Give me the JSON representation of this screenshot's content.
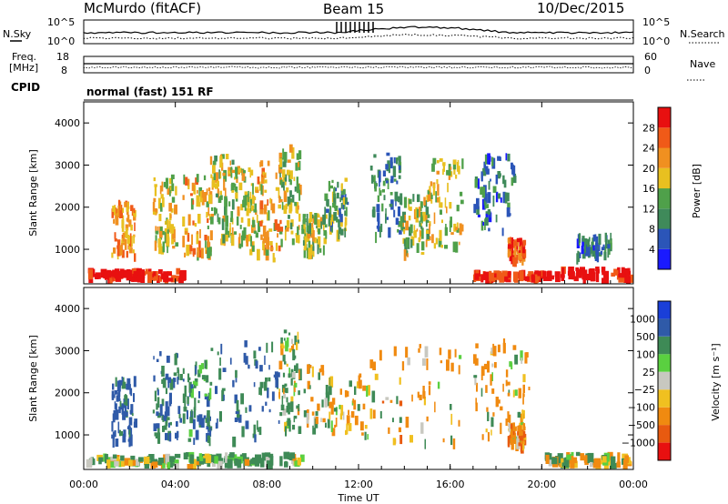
{
  "header": {
    "station": "McMurdo (fitACF)",
    "beam": "Beam 15",
    "date": "10/Dec/2015"
  },
  "strip": {
    "nsky_label": "N.Sky",
    "nsearch_label": "N.Search",
    "freq_label_1": "Freq.",
    "freq_label_2": "[MHz]",
    "nave_label": "Nave",
    "cpid_label": "CPID",
    "mode_text": "normal (fast) 151 RF",
    "noise_ticks_left": [
      "10^5",
      "10^0"
    ],
    "noise_ticks_right": [
      "10^5",
      "10^0"
    ],
    "freq_ticks": [
      "18",
      "8"
    ],
    "nave_ticks": [
      "60",
      "0"
    ]
  },
  "axes": {
    "ylabel": "Slant Range [km]",
    "xlabel": "Time UT",
    "y_ticks": [
      "1000",
      "2000",
      "3000",
      "4000"
    ],
    "x_ticks": [
      "00:00",
      "04:00",
      "08:00",
      "12:00",
      "16:00",
      "20:00",
      "00:00"
    ]
  },
  "colorbars": {
    "power": {
      "label": "Power [dB]",
      "ticks": [
        "4",
        "8",
        "12",
        "16",
        "20",
        "24",
        "28"
      ],
      "colors": [
        "#1a1aff",
        "#2b55b8",
        "#3f8a5a",
        "#4fa04a",
        "#e8c020",
        "#f09020",
        "#f05a18",
        "#e81010"
      ]
    },
    "velocity": {
      "label": "Velocity [m s⁻¹]",
      "ticks": [
        "1000",
        "500",
        "100",
        "25",
        "−25",
        "−100",
        "−500",
        "−1000"
      ],
      "colors": [
        "#1a3fd8",
        "#2f5aa8",
        "#3e8a56",
        "#5ad040",
        "#c8c8c0",
        "#f0c020",
        "#f08a10",
        "#e85a10",
        "#e81010"
      ]
    }
  },
  "chart_data": [
    {
      "type": "heatmap",
      "title": "Power",
      "xlabel": "Time UT",
      "ylabel": "Slant Range [km]",
      "xlim": [
        0,
        24
      ],
      "ylim": [
        180,
        4500
      ],
      "colorbar": {
        "label": "Power [dB]",
        "range": [
          0,
          32
        ]
      },
      "regions": [
        {
          "t0": 0.0,
          "t1": 4.3,
          "r0": 300,
          "r1": 560,
          "value": 30
        },
        {
          "t0": 17.0,
          "t1": 20.0,
          "r0": 300,
          "r1": 520,
          "value": 28
        },
        {
          "t0": 20.0,
          "t1": 24.0,
          "r0": 300,
          "r1": 600,
          "value": 30
        },
        {
          "t0": 1.2,
          "t1": 2.2,
          "r0": 900,
          "r1": 2200,
          "value": 22
        },
        {
          "t0": 3.0,
          "t1": 4.0,
          "r0": 1000,
          "r1": 2800,
          "value": 18
        },
        {
          "t0": 4.3,
          "t1": 5.5,
          "r0": 900,
          "r1": 2800,
          "value": 20
        },
        {
          "t0": 5.5,
          "t1": 6.5,
          "r0": 1200,
          "r1": 3300,
          "value": 16
        },
        {
          "t0": 6.5,
          "t1": 7.5,
          "r0": 1000,
          "r1": 3000,
          "value": 18
        },
        {
          "t0": 7.5,
          "t1": 8.6,
          "r0": 800,
          "r1": 3200,
          "value": 20
        },
        {
          "t0": 8.5,
          "t1": 9.4,
          "r0": 1200,
          "r1": 3500,
          "value": 16
        },
        {
          "t0": 9.5,
          "t1": 10.5,
          "r0": 1000,
          "r1": 1900,
          "value": 16
        },
        {
          "t0": 10.5,
          "t1": 11.5,
          "r0": 1400,
          "r1": 2700,
          "value": 12
        },
        {
          "t0": 12.5,
          "t1": 13.8,
          "r0": 1400,
          "r1": 3300,
          "value": 10
        },
        {
          "t0": 13.8,
          "t1": 15.0,
          "r0": 900,
          "r1": 2400,
          "value": 16
        },
        {
          "t0": 15.0,
          "t1": 16.5,
          "r0": 1100,
          "r1": 3200,
          "value": 18
        },
        {
          "t0": 17.0,
          "t1": 18.8,
          "r0": 1500,
          "r1": 3300,
          "value": 8
        },
        {
          "t0": 18.5,
          "t1": 19.2,
          "r0": 800,
          "r1": 1300,
          "value": 26
        },
        {
          "t0": 21.5,
          "t1": 23.0,
          "r0": 900,
          "r1": 1400,
          "value": 8
        }
      ]
    },
    {
      "type": "heatmap",
      "title": "Velocity",
      "xlabel": "Time UT",
      "ylabel": "Slant Range [km]",
      "xlim": [
        0,
        24
      ],
      "ylim": [
        180,
        4500
      ],
      "colorbar": {
        "label": "Velocity [m s⁻¹]",
        "range": [
          -1000,
          1000
        ]
      },
      "regions": [
        {
          "t0": 0.0,
          "t1": 4.3,
          "r0": 300,
          "r1": 560,
          "value": 50
        },
        {
          "t0": 4.3,
          "t1": 9.5,
          "r0": 300,
          "r1": 600,
          "value": 120
        },
        {
          "t0": 20.0,
          "t1": 24.0,
          "r0": 300,
          "r1": 600,
          "value": 0
        },
        {
          "t0": 1.2,
          "t1": 2.2,
          "r0": 900,
          "r1": 2400,
          "value": 600
        },
        {
          "t0": 3.0,
          "t1": 4.2,
          "r0": 1000,
          "r1": 3000,
          "value": 500
        },
        {
          "t0": 4.3,
          "t1": 5.5,
          "r0": 900,
          "r1": 2800,
          "value": 400
        },
        {
          "t0": 5.5,
          "t1": 8.6,
          "r0": 900,
          "r1": 3300,
          "value": 500
        },
        {
          "t0": 8.5,
          "t1": 9.4,
          "r0": 1200,
          "r1": 3500,
          "value": 150
        },
        {
          "t0": 9.5,
          "t1": 12.0,
          "r0": 1100,
          "r1": 2700,
          "value": -30
        },
        {
          "t0": 12.0,
          "t1": 16.5,
          "r0": 900,
          "r1": 3200,
          "value": -200
        },
        {
          "t0": 17.0,
          "t1": 19.5,
          "r0": 1000,
          "r1": 3300,
          "value": -150
        },
        {
          "t0": 18.5,
          "t1": 19.2,
          "r0": 800,
          "r1": 1300,
          "value": -300
        }
      ]
    }
  ]
}
